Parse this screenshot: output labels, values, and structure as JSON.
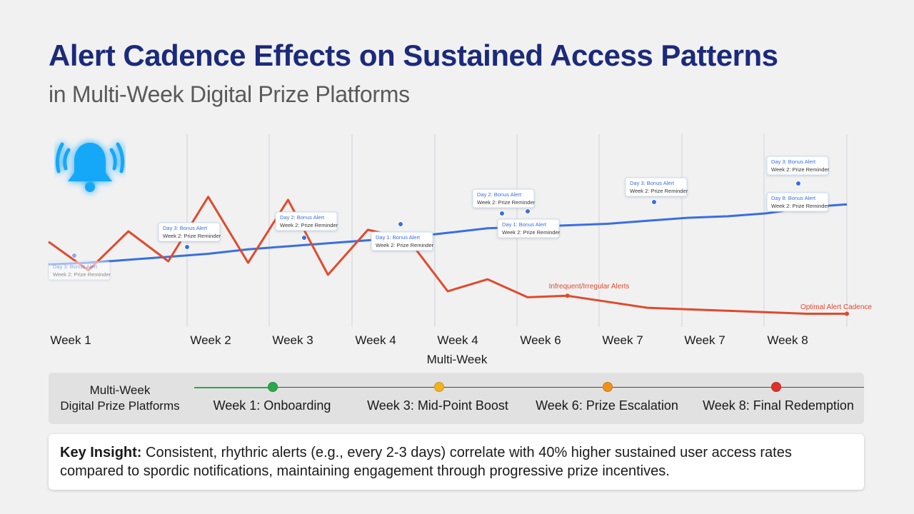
{
  "title": "Alert Cadence Effects on Sustained Access Patterns",
  "subtitle": "in Multi-Week Digital Prize Platforms",
  "chart_data": {
    "type": "line",
    "title": "Alert Cadence Effects on Sustained Access Patterns",
    "subtitle": "in Multi-Week Digital Prize Platforms",
    "xlabel": "Multi-Week",
    "ylabel": "",
    "categories": [
      "Week 1",
      "Week 2",
      "Week 3",
      "Week 4",
      "Week 4",
      "Week 6",
      "Week 7",
      "Week 7",
      "Week 8"
    ],
    "x": [
      0,
      0.5,
      1,
      1.5,
      2,
      2.5,
      3,
      3.5,
      4,
      4.5,
      5,
      5.5,
      6,
      6.5,
      7,
      7.5,
      8,
      8.5,
      9,
      9.5,
      10
    ],
    "ylim": [
      0,
      100
    ],
    "grid": "vertical",
    "series": [
      {
        "name": "Optimal Alert Cadence",
        "color": "#3a6ee0",
        "values": [
          38,
          39,
          41,
          43,
          45,
          48,
          50,
          52,
          54,
          56,
          59,
          62,
          63,
          64,
          65,
          67,
          69,
          70,
          72,
          76,
          78
        ]
      },
      {
        "name": "Infrequent/Irregular Alerts",
        "color": "#e04a2c",
        "values": [
          53,
          34,
          60,
          40,
          83,
          39,
          81,
          31,
          61,
          55,
          20,
          28,
          16,
          17,
          13,
          9,
          8,
          7,
          6,
          5,
          5
        ]
      }
    ],
    "annotations": [
      {
        "line1": "Day 3: Bonus Alert",
        "line2": "Week 2: Prize Reminder"
      },
      {
        "line1": "Day 3: Bonus Alert",
        "line2": "Week 2: Prize Reminder"
      },
      {
        "line1": "Day 2: Bonus Alert",
        "line2": "Week 2: Prize Reminder"
      },
      {
        "line1": "Day 1: Bonus Alert",
        "line2": "Week 2: Prize Reminder"
      },
      {
        "line1": "Day 2: Bonus Alert",
        "line2": "Week 2: Prize Reminder"
      },
      {
        "line1": "Day 1: Bonus Alert",
        "line2": "Week 2: Prize Reminder"
      },
      {
        "line1": "Day 3: Bonus Alert",
        "line2": "Week 2: Prize Reminder"
      },
      {
        "line1": "Day 3: Bonus Alert",
        "line2": "Week 2: Prize Reminder"
      },
      {
        "line1": "Day 8: Bonus Alert",
        "line2": "Week 2: Prize Reminder"
      }
    ]
  },
  "timeline": {
    "label_line1": "Multi-Week",
    "label_line2": "Digital Prize Platforms",
    "milestones": [
      {
        "label": "Week 1: Onboarding",
        "color": "#2aa84a"
      },
      {
        "label": "Week 3: Mid-Point Boost",
        "color": "#f2b21c"
      },
      {
        "label": "Week 6: Prize Escalation",
        "color": "#f0901a"
      },
      {
        "label": "Week 8: Final Redemption",
        "color": "#e0302a"
      }
    ]
  },
  "insight": {
    "heading": "Key Insight:",
    "text": " Consistent, rhythric alerts (e.g., every 2-3 days) correlate with 40% higher sustained user access rates compared to spordic notifications, maintaining engagement through progressive prize incentives."
  },
  "icons": {
    "bell": "bell-icon",
    "bell_color": "#12a8f8"
  }
}
